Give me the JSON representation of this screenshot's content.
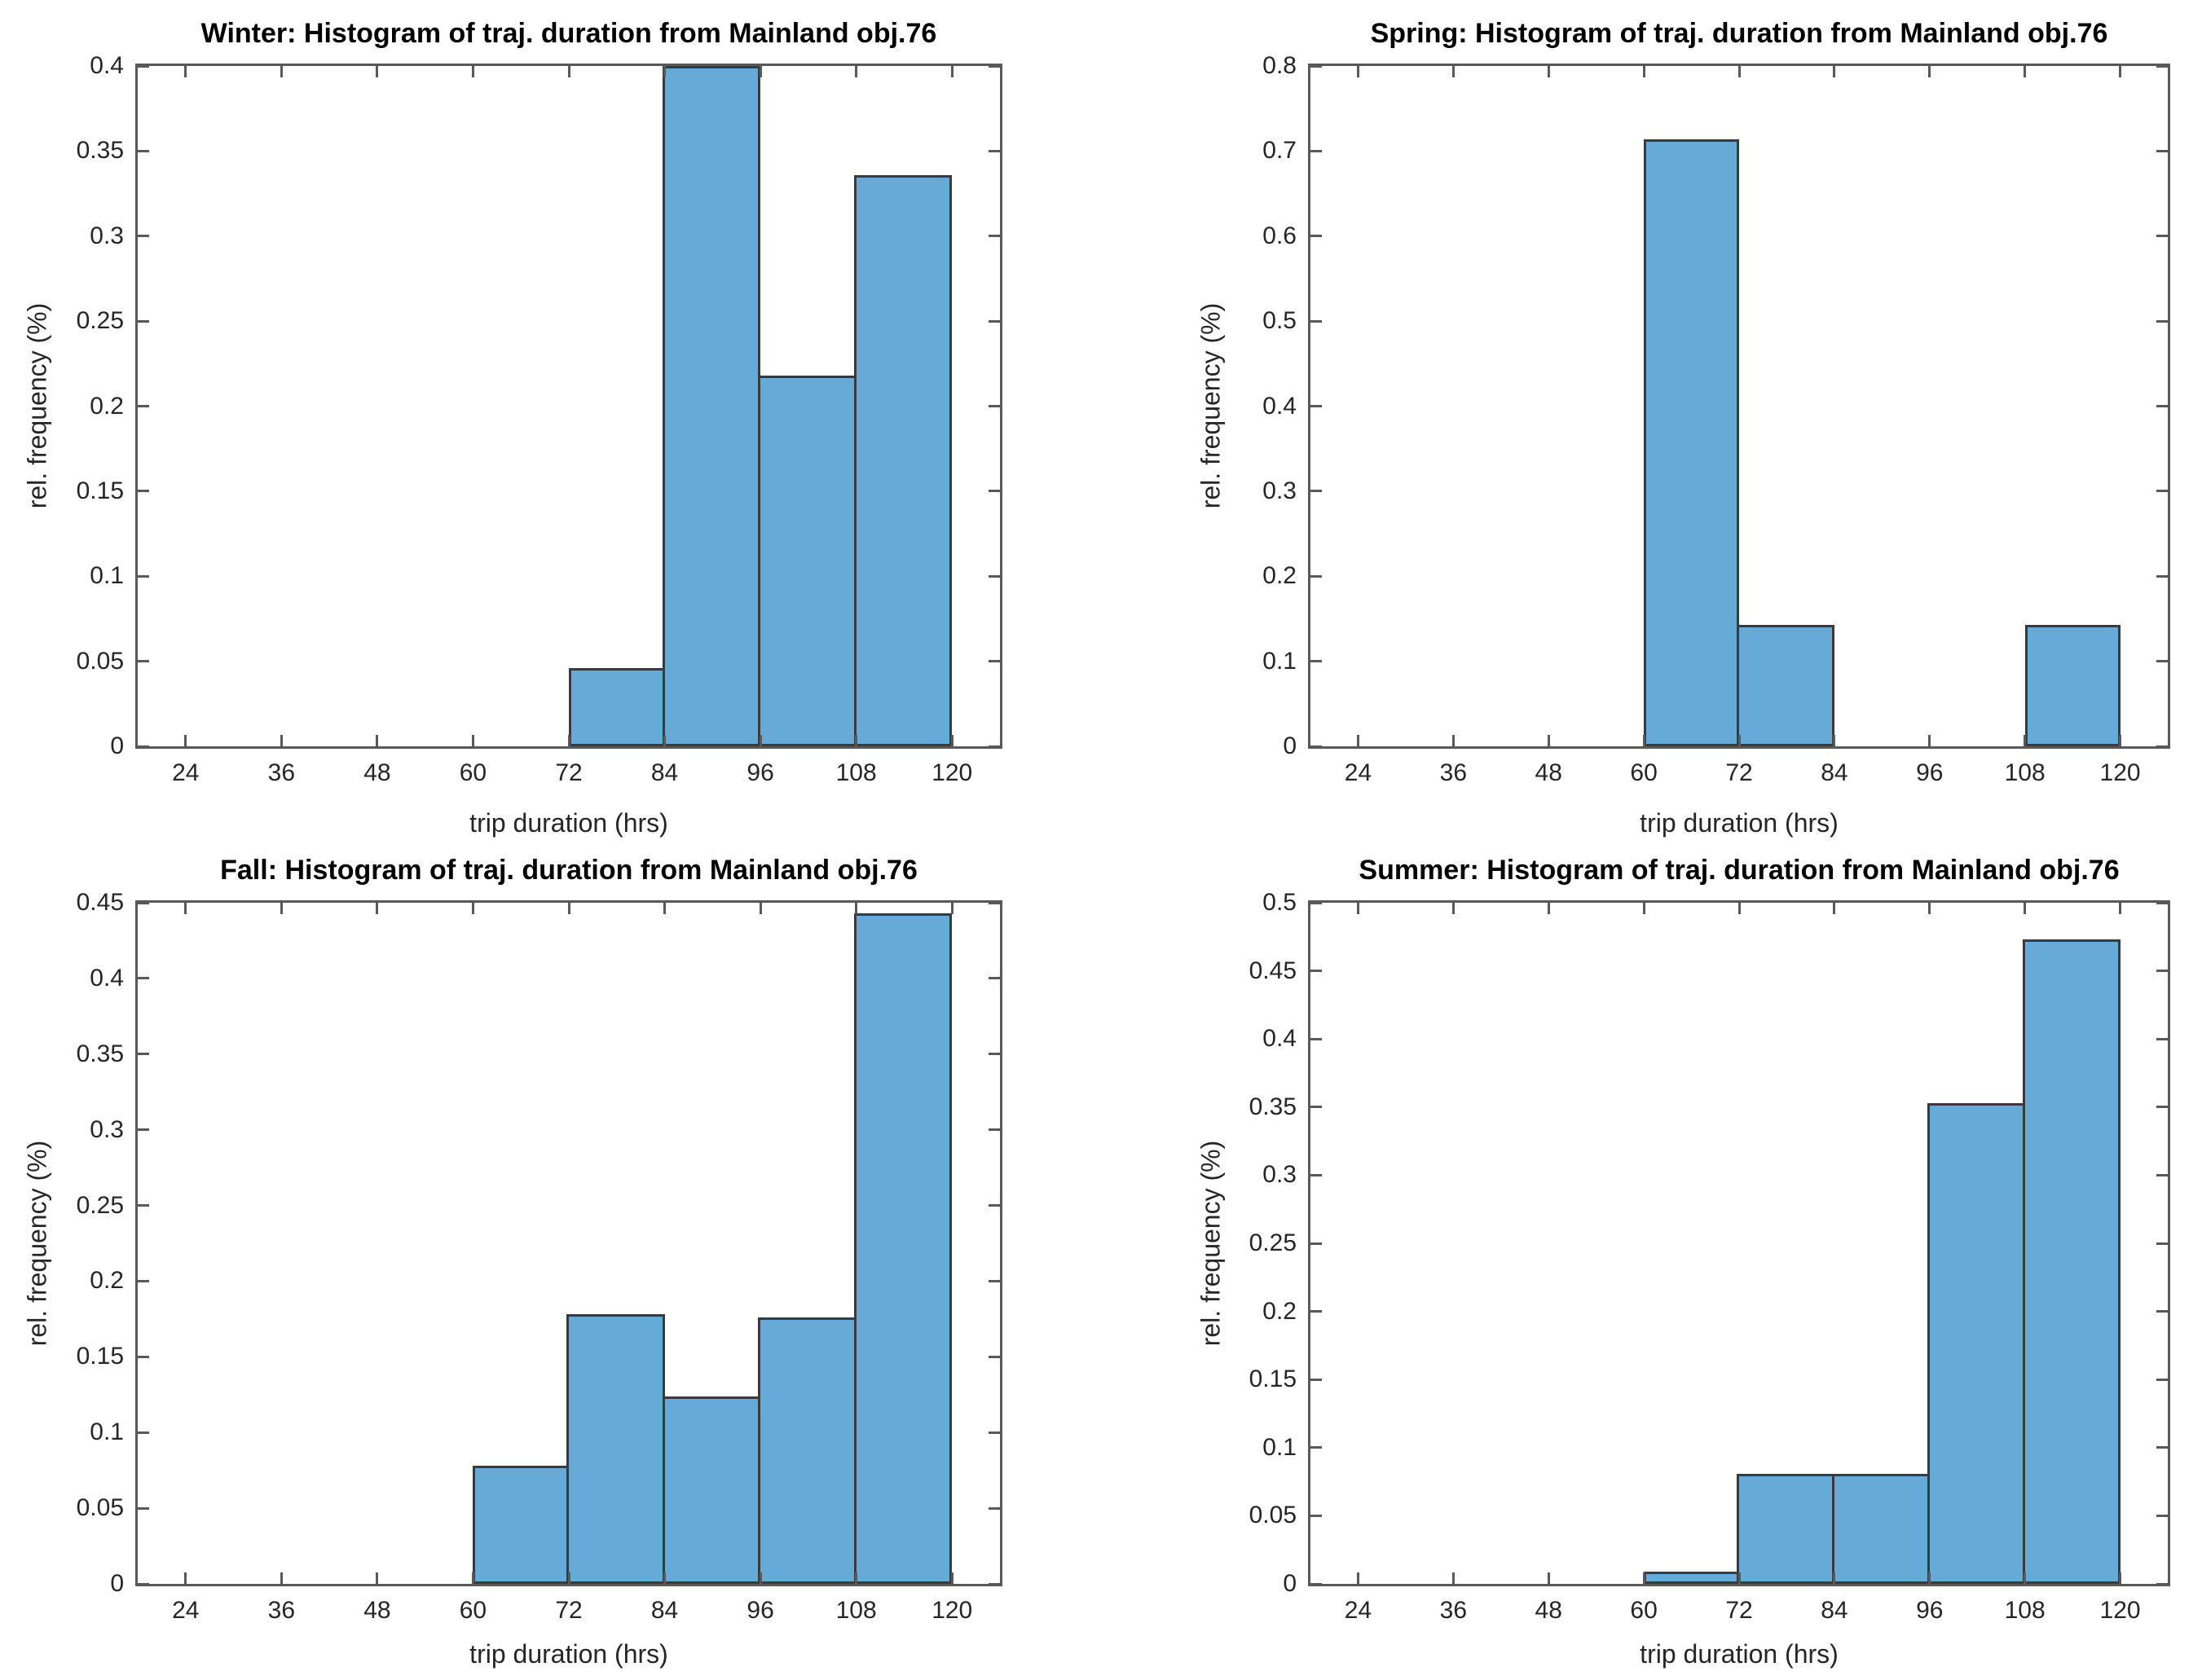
{
  "figure": {
    "background": "#ffffff"
  },
  "colors": {
    "bar_fill": "#66AAD7",
    "bar_edge": "#3A3A3A",
    "axis": "#595959",
    "tick_text": "#262626",
    "title_text": "#000000"
  },
  "chart_data": [
    {
      "type": "bar",
      "season": "Winter",
      "title": "Winter: Histogram of traj. duration from Mainland obj.76",
      "xlabel": "trip duration (hrs)",
      "ylabel": "rel. frequency (%)",
      "xlim": [
        18,
        126
      ],
      "ylim": [
        0,
        0.4
      ],
      "grid": false,
      "xticks": [
        24,
        36,
        48,
        60,
        72,
        84,
        96,
        108,
        120
      ],
      "yticks": [
        {
          "v": 0,
          "label": "0"
        },
        {
          "v": 0.05,
          "label": "0.05"
        },
        {
          "v": 0.1,
          "label": "0.1"
        },
        {
          "v": 0.15,
          "label": "0.15"
        },
        {
          "v": 0.2,
          "label": "0.2"
        },
        {
          "v": 0.25,
          "label": "0.25"
        },
        {
          "v": 0.3,
          "label": "0.3"
        },
        {
          "v": 0.35,
          "label": "0.35"
        },
        {
          "v": 0.4,
          "label": "0.4"
        }
      ],
      "bin_width_hrs": 12,
      "bins": [
        {
          "x0": 72,
          "x1": 84,
          "value": 0.046
        },
        {
          "x0": 84,
          "x1": 96,
          "value": 0.4
        },
        {
          "x0": 96,
          "x1": 108,
          "value": 0.218
        },
        {
          "x0": 108,
          "x1": 120,
          "value": 0.336
        }
      ]
    },
    {
      "type": "bar",
      "season": "Spring",
      "title": "Spring: Histogram of traj. duration from Mainland obj.76",
      "xlabel": "trip duration (hrs)",
      "ylabel": "rel. frequency (%)",
      "xlim": [
        18,
        126
      ],
      "ylim": [
        0,
        0.8
      ],
      "grid": false,
      "xticks": [
        24,
        36,
        48,
        60,
        72,
        84,
        96,
        108,
        120
      ],
      "yticks": [
        {
          "v": 0,
          "label": "0"
        },
        {
          "v": 0.1,
          "label": "0.1"
        },
        {
          "v": 0.2,
          "label": "0.2"
        },
        {
          "v": 0.3,
          "label": "0.3"
        },
        {
          "v": 0.4,
          "label": "0.4"
        },
        {
          "v": 0.5,
          "label": "0.5"
        },
        {
          "v": 0.6,
          "label": "0.6"
        },
        {
          "v": 0.7,
          "label": "0.7"
        },
        {
          "v": 0.8,
          "label": "0.8"
        }
      ],
      "bin_width_hrs": 12,
      "bins": [
        {
          "x0": 60,
          "x1": 72,
          "value": 0.714
        },
        {
          "x0": 72,
          "x1": 84,
          "value": 0.143
        },
        {
          "x0": 108,
          "x1": 120,
          "value": 0.143
        }
      ]
    },
    {
      "type": "bar",
      "season": "Fall",
      "title": "Fall: Histogram of traj. duration from Mainland obj.76",
      "xlabel": "trip duration (hrs)",
      "ylabel": "rel. frequency (%)",
      "xlim": [
        18,
        126
      ],
      "ylim": [
        0,
        0.45
      ],
      "grid": false,
      "xticks": [
        24,
        36,
        48,
        60,
        72,
        84,
        96,
        108,
        120
      ],
      "yticks": [
        {
          "v": 0,
          "label": "0"
        },
        {
          "v": 0.05,
          "label": "0.05"
        },
        {
          "v": 0.1,
          "label": "0.1"
        },
        {
          "v": 0.15,
          "label": "0.15"
        },
        {
          "v": 0.2,
          "label": "0.2"
        },
        {
          "v": 0.25,
          "label": "0.25"
        },
        {
          "v": 0.3,
          "label": "0.3"
        },
        {
          "v": 0.35,
          "label": "0.35"
        },
        {
          "v": 0.4,
          "label": "0.4"
        },
        {
          "v": 0.45,
          "label": "0.45"
        }
      ],
      "bin_width_hrs": 12,
      "bins": [
        {
          "x0": 60,
          "x1": 72,
          "value": 0.078
        },
        {
          "x0": 72,
          "x1": 84,
          "value": 0.178
        },
        {
          "x0": 84,
          "x1": 96,
          "value": 0.124
        },
        {
          "x0": 96,
          "x1": 108,
          "value": 0.176
        },
        {
          "x0": 108,
          "x1": 120,
          "value": 0.443
        }
      ]
    },
    {
      "type": "bar",
      "season": "Summer",
      "title": "Summer: Histogram of traj. duration from Mainland obj.76",
      "xlabel": "trip duration (hrs)",
      "ylabel": "rel. frequency (%)",
      "xlim": [
        18,
        126
      ],
      "ylim": [
        0,
        0.5
      ],
      "grid": false,
      "xticks": [
        24,
        36,
        48,
        60,
        72,
        84,
        96,
        108,
        120
      ],
      "yticks": [
        {
          "v": 0,
          "label": "0"
        },
        {
          "v": 0.05,
          "label": "0.05"
        },
        {
          "v": 0.1,
          "label": "0.1"
        },
        {
          "v": 0.15,
          "label": "0.15"
        },
        {
          "v": 0.2,
          "label": "0.2"
        },
        {
          "v": 0.25,
          "label": "0.25"
        },
        {
          "v": 0.3,
          "label": "0.3"
        },
        {
          "v": 0.35,
          "label": "0.35"
        },
        {
          "v": 0.4,
          "label": "0.4"
        },
        {
          "v": 0.45,
          "label": "0.45"
        },
        {
          "v": 0.5,
          "label": "0.5"
        }
      ],
      "bin_width_hrs": 12,
      "bins": [
        {
          "x0": 60,
          "x1": 72,
          "value": 0.009
        },
        {
          "x0": 72,
          "x1": 84,
          "value": 0.081
        },
        {
          "x0": 84,
          "x1": 96,
          "value": 0.081
        },
        {
          "x0": 96,
          "x1": 108,
          "value": 0.353
        },
        {
          "x0": 108,
          "x1": 120,
          "value": 0.473
        }
      ]
    }
  ]
}
